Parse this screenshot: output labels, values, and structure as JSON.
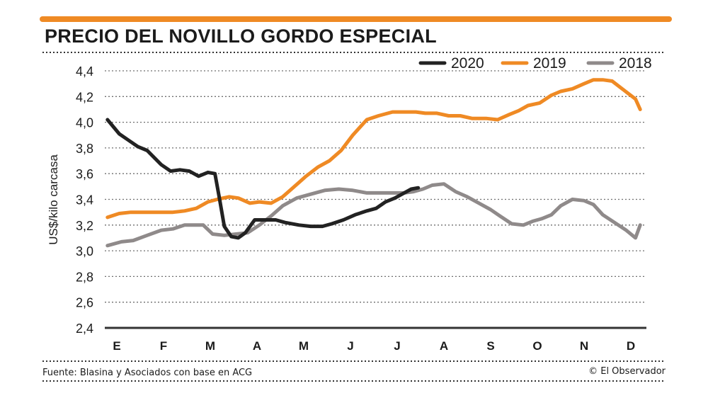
{
  "title": "PRECIO DEL NOVILLO GORDO ESPECIAL",
  "source": "Fuente: Blasina y Asociados con base en ACG",
  "credit": "© El Observador",
  "colors": {
    "accent": "#ef8a24",
    "y2020": "#222222",
    "y2019": "#ef8a24",
    "y2018": "#8f8a8a",
    "grid": "#6f6f6f",
    "text": "#1b1b1b"
  },
  "chart_data": {
    "type": "line",
    "title": "PRECIO DEL NOVILLO GORDO ESPECIAL",
    "xlabel": "",
    "ylabel": "US$/kilo carcasa",
    "categories": [
      "E",
      "F",
      "M",
      "A",
      "M",
      "J",
      "J",
      "A",
      "S",
      "O",
      "N",
      "D"
    ],
    "x_range": [
      0,
      11.2
    ],
    "ylim": [
      2.4,
      4.4
    ],
    "yticks": [
      "2,4",
      "2,6",
      "2,8",
      "3,0",
      "3,2",
      "3,4",
      "3,6",
      "3,8",
      "4,0",
      "4,2",
      "4,4"
    ],
    "grid": true,
    "legend_position": "top-right",
    "series": [
      {
        "name": "2020",
        "color": "#222222",
        "x": [
          -0.2,
          0.05,
          0.25,
          0.45,
          0.65,
          0.95,
          1.15,
          1.35,
          1.55,
          1.75,
          1.95,
          2.1,
          2.2,
          2.3,
          2.45,
          2.6,
          2.75,
          2.95,
          3.1,
          3.4,
          3.6,
          3.9,
          4.15,
          4.4,
          4.6,
          4.85,
          5.1,
          5.35,
          5.55,
          5.75,
          5.95,
          6.15,
          6.3,
          6.45
        ],
        "y": [
          4.02,
          3.91,
          3.86,
          3.81,
          3.78,
          3.67,
          3.62,
          3.63,
          3.62,
          3.58,
          3.61,
          3.6,
          3.4,
          3.19,
          3.11,
          3.1,
          3.14,
          3.24,
          3.24,
          3.24,
          3.22,
          3.2,
          3.19,
          3.19,
          3.21,
          3.24,
          3.28,
          3.31,
          3.33,
          3.38,
          3.41,
          3.45,
          3.48,
          3.49
        ]
      },
      {
        "name": "2019",
        "color": "#ef8a24",
        "x": [
          -0.2,
          0.05,
          0.3,
          0.6,
          0.9,
          1.2,
          1.45,
          1.7,
          1.95,
          2.15,
          2.4,
          2.6,
          2.85,
          3.05,
          3.3,
          3.55,
          3.8,
          4.05,
          4.3,
          4.55,
          4.8,
          5.05,
          5.35,
          5.6,
          5.9,
          6.2,
          6.4,
          6.6,
          6.85,
          7.1,
          7.35,
          7.6,
          7.9,
          8.15,
          8.4,
          8.6,
          8.8,
          9.05,
          9.3,
          9.5,
          9.75,
          10.0,
          10.2,
          10.4,
          10.6,
          10.85,
          11.1,
          11.2
        ],
        "y": [
          3.26,
          3.29,
          3.3,
          3.3,
          3.3,
          3.3,
          3.31,
          3.33,
          3.38,
          3.4,
          3.42,
          3.41,
          3.37,
          3.38,
          3.37,
          3.42,
          3.5,
          3.58,
          3.65,
          3.7,
          3.78,
          3.9,
          4.02,
          4.05,
          4.08,
          4.08,
          4.08,
          4.07,
          4.07,
          4.05,
          4.05,
          4.03,
          4.03,
          4.02,
          4.06,
          4.09,
          4.13,
          4.15,
          4.21,
          4.24,
          4.26,
          4.3,
          4.33,
          4.33,
          4.32,
          4.25,
          4.18,
          4.1
        ]
      },
      {
        "name": "2018",
        "color": "#8f8a8a",
        "x": [
          -0.2,
          0.1,
          0.35,
          0.65,
          0.95,
          1.2,
          1.45,
          1.65,
          1.85,
          2.05,
          2.3,
          2.55,
          2.8,
          3.05,
          3.3,
          3.55,
          3.85,
          4.15,
          4.45,
          4.75,
          5.05,
          5.35,
          5.65,
          5.95,
          6.15,
          6.35,
          6.55,
          6.75,
          7.0,
          7.25,
          7.5,
          7.75,
          8.0,
          8.2,
          8.45,
          8.7,
          8.9,
          9.1,
          9.3,
          9.5,
          9.75,
          10.0,
          10.2,
          10.4,
          10.65,
          10.9,
          11.1,
          11.2
        ],
        "y": [
          3.04,
          3.07,
          3.08,
          3.12,
          3.16,
          3.17,
          3.2,
          3.2,
          3.2,
          3.13,
          3.12,
          3.13,
          3.14,
          3.2,
          3.27,
          3.35,
          3.41,
          3.44,
          3.47,
          3.48,
          3.47,
          3.45,
          3.45,
          3.45,
          3.45,
          3.46,
          3.48,
          3.51,
          3.52,
          3.46,
          3.42,
          3.37,
          3.32,
          3.27,
          3.21,
          3.2,
          3.23,
          3.25,
          3.28,
          3.35,
          3.4,
          3.39,
          3.36,
          3.28,
          3.22,
          3.16,
          3.1,
          3.2
        ]
      }
    ]
  }
}
